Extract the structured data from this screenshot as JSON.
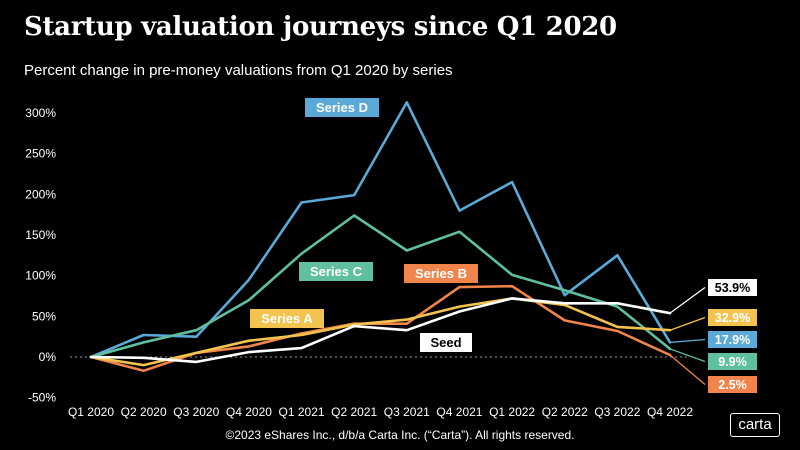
{
  "header": {
    "title": "Startup valuation journeys since Q1 2020",
    "subtitle": "Percent change in pre-money valuations from Q1 2020 by series"
  },
  "footer": {
    "copyright": "©2023 eShares Inc., d/b/a Carta Inc. (“Carta”). All rights reserved.",
    "logo_text": "carta"
  },
  "chart_data": {
    "type": "line",
    "title": "Startup valuation journeys since Q1 2020",
    "subtitle": "Percent change in pre-money valuations from Q1 2020 by series",
    "xlabel": "",
    "ylabel": "",
    "categories": [
      "Q1 2020",
      "Q2 2020",
      "Q3 2020",
      "Q4 2020",
      "Q1 2021",
      "Q2 2021",
      "Q3 2021",
      "Q4 2021",
      "Q1 2022",
      "Q2 2022",
      "Q3 2022",
      "Q4 2022"
    ],
    "yticks": [
      -50,
      0,
      50,
      100,
      150,
      200,
      250,
      300
    ],
    "ytick_labels": [
      "-50%",
      "0%",
      "50%",
      "100%",
      "150%",
      "200%",
      "250%",
      "300%"
    ],
    "ylim": [
      -55,
      320
    ],
    "grid": false,
    "legend": "inline-labels",
    "series": [
      {
        "name": "Series D",
        "color": "#5ba9d6",
        "label_color": "#5ba9d6",
        "label_text_color": "#ffffff",
        "values": [
          0,
          27,
          25,
          95,
          190,
          199,
          313,
          180,
          215,
          76,
          125,
          17.9
        ],
        "end_label": "17.9%"
      },
      {
        "name": "Series C",
        "color": "#5fbf9f",
        "label_color": "#5fbf9f",
        "label_text_color": "#ffffff",
        "values": [
          0,
          18,
          33,
          70,
          127,
          174,
          131,
          154,
          101,
          82,
          62,
          9.9
        ],
        "end_label": "9.9%"
      },
      {
        "name": "Series B",
        "color": "#f0844a",
        "label_color": "#f0844a",
        "label_text_color": "#ffffff",
        "values": [
          0,
          -17,
          5,
          13,
          29,
          41,
          41,
          86,
          87,
          45,
          32,
          2.5
        ],
        "end_label": "2.5%"
      },
      {
        "name": "Series A",
        "color": "#f2c34e",
        "label_color": "#f2c34e",
        "label_text_color": "#ffffff",
        "values": [
          0,
          -10,
          5,
          20,
          27,
          40,
          46,
          62,
          72,
          64,
          37,
          32.9
        ],
        "end_label": "32.9%"
      },
      {
        "name": "Seed",
        "color": "#ffffff",
        "label_color": "#ffffff",
        "label_text_color": "#000000",
        "values": [
          0,
          -1,
          -6,
          6,
          11,
          38,
          33,
          56,
          72,
          66,
          66,
          53.9
        ],
        "end_label": "53.9%"
      }
    ]
  }
}
